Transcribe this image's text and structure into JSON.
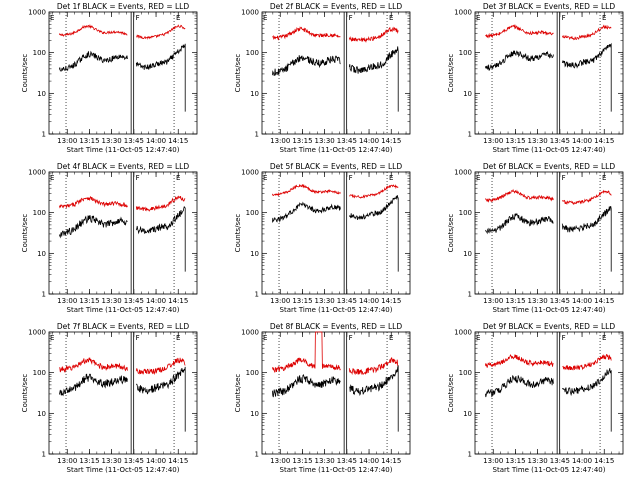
{
  "colors": {
    "events": "#000000",
    "lld": "#dd0000",
    "axes": "#000000",
    "background": "#ffffff"
  },
  "panels": [
    {
      "title": "Det 1f BLACK = Events, RED = LLD",
      "ylabel": "Counts/sec",
      "xlabel": "Start Time (11-Oct-05 12:47:40)",
      "marker_f": "F",
      "marker_e": "E",
      "corner_e": "E",
      "lld_level": 270,
      "lld_amp": 1.45,
      "ev_level": 38,
      "ev_amp": 2.2,
      "ev_noise": 0.07,
      "lld_noise": 0.03,
      "lld_spike": false
    },
    {
      "title": "Det 2f BLACK = Events, RED = LLD",
      "ylabel": "Counts/sec",
      "xlabel": "Start Time (11-Oct-05 12:47:40)",
      "marker_f": "F",
      "marker_e": "E",
      "corner_e": "E",
      "lld_level": 230,
      "lld_amp": 1.6,
      "ev_level": 32,
      "ev_amp": 2.3,
      "ev_noise": 0.09,
      "lld_noise": 0.05,
      "lld_spike": false
    },
    {
      "title": "Det 3f BLACK = Events, RED = LLD",
      "ylabel": "Counts/sec",
      "xlabel": "Start Time (11-Oct-05 12:47:40)",
      "marker_f": "F",
      "marker_e": "E",
      "corner_e": "E",
      "lld_level": 260,
      "lld_amp": 1.55,
      "ev_level": 42,
      "ev_amp": 2.1,
      "ev_noise": 0.07,
      "lld_noise": 0.04,
      "lld_spike": false
    },
    {
      "title": "Det 4f BLACK = Events, RED = LLD",
      "ylabel": "Counts/sec",
      "xlabel": "Start Time (11-Oct-05 12:47:40)",
      "marker_f": "F",
      "marker_e": "E",
      "corner_e": "E",
      "lld_level": 140,
      "lld_amp": 1.7,
      "ev_level": 30,
      "ev_amp": 2.1,
      "ev_noise": 0.09,
      "lld_noise": 0.05,
      "lld_spike": false
    },
    {
      "title": "Det 5f BLACK = Events, RED = LLD",
      "ylabel": "Counts/sec",
      "xlabel": "Start Time (11-Oct-05 12:47:40)",
      "marker_f": "F",
      "marker_e": "E",
      "corner_e": "E",
      "lld_level": 280,
      "lld_amp": 1.6,
      "ev_level": 65,
      "ev_amp": 2.1,
      "ev_noise": 0.06,
      "lld_noise": 0.03,
      "lld_spike": false
    },
    {
      "title": "Det 6f BLACK = Events, RED = LLD",
      "ylabel": "Counts/sec",
      "xlabel": "Start Time (11-Oct-05 12:47:40)",
      "marker_f": "F",
      "marker_e": "E",
      "corner_e": "E",
      "lld_level": 200,
      "lld_amp": 1.6,
      "ev_level": 33,
      "ev_amp": 2.2,
      "ev_noise": 0.08,
      "lld_noise": 0.04,
      "lld_spike": false
    },
    {
      "title": "Det 7f BLACK = Events, RED = LLD",
      "ylabel": "Counts/sec",
      "xlabel": "Start Time (11-Oct-05 12:47:40)",
      "marker_f": "F",
      "marker_e": "E",
      "corner_e": "E",
      "lld_level": 120,
      "lld_amp": 1.9,
      "ev_level": 32,
      "ev_amp": 2.2,
      "ev_noise": 0.1,
      "lld_noise": 0.07,
      "lld_spike": false
    },
    {
      "title": "Det 8f BLACK = Events, RED = LLD",
      "ylabel": "Counts/sec",
      "xlabel": "Start Time (11-Oct-05 12:47:40)",
      "marker_f": "F",
      "marker_e": "E",
      "corner_e": "E",
      "lld_level": 120,
      "lld_amp": 1.8,
      "ev_level": 30,
      "ev_amp": 2.2,
      "ev_noise": 0.1,
      "lld_noise": 0.07,
      "lld_spike": true
    },
    {
      "title": "Det 9f BLACK = Events, RED = LLD",
      "ylabel": "Counts/sec",
      "xlabel": "Start Time (11-Oct-05 12:47:40)",
      "marker_f": "F",
      "marker_e": "E",
      "corner_e": "E",
      "lld_level": 150,
      "lld_amp": 1.8,
      "ev_level": 30,
      "ev_amp": 2.2,
      "ev_noise": 0.09,
      "lld_noise": 0.06,
      "lld_spike": false
    }
  ],
  "chart_data": {
    "type": "line",
    "layout": "3x3 grid",
    "x_tick_labels": [
      "13:00",
      "13:15",
      "13:30",
      "13:45",
      "14:00",
      "14:15"
    ],
    "x_ticks_min_after_start": [
      12.33,
      27.33,
      42.33,
      57.33,
      72.33,
      87.33
    ],
    "xlim_min_after_start": [
      0,
      100
    ],
    "y_scale": "log",
    "ylim": [
      1,
      1000
    ],
    "y_tick_labels": [
      "1",
      "10",
      "100",
      "1000"
    ],
    "y_tick_values": [
      1,
      10,
      100,
      1000
    ],
    "series": [
      {
        "name": "Events",
        "color": "#000000"
      },
      {
        "name": "LLD",
        "color": "#dd0000"
      }
    ],
    "vertical_markers": [
      {
        "label": "",
        "style": "dotted",
        "x_min": 11.5
      },
      {
        "label": "F",
        "style": "double-solid",
        "x_min": [
          55.5,
          57.2
        ]
      },
      {
        "label": "E",
        "style": "dotted",
        "x_min": 84.5
      }
    ],
    "segments": [
      {
        "x_min_range": [
          7,
          53
        ],
        "note": "first data segment"
      },
      {
        "x_min_range": [
          59,
          92
        ],
        "note": "second data segment"
      }
    ]
  }
}
